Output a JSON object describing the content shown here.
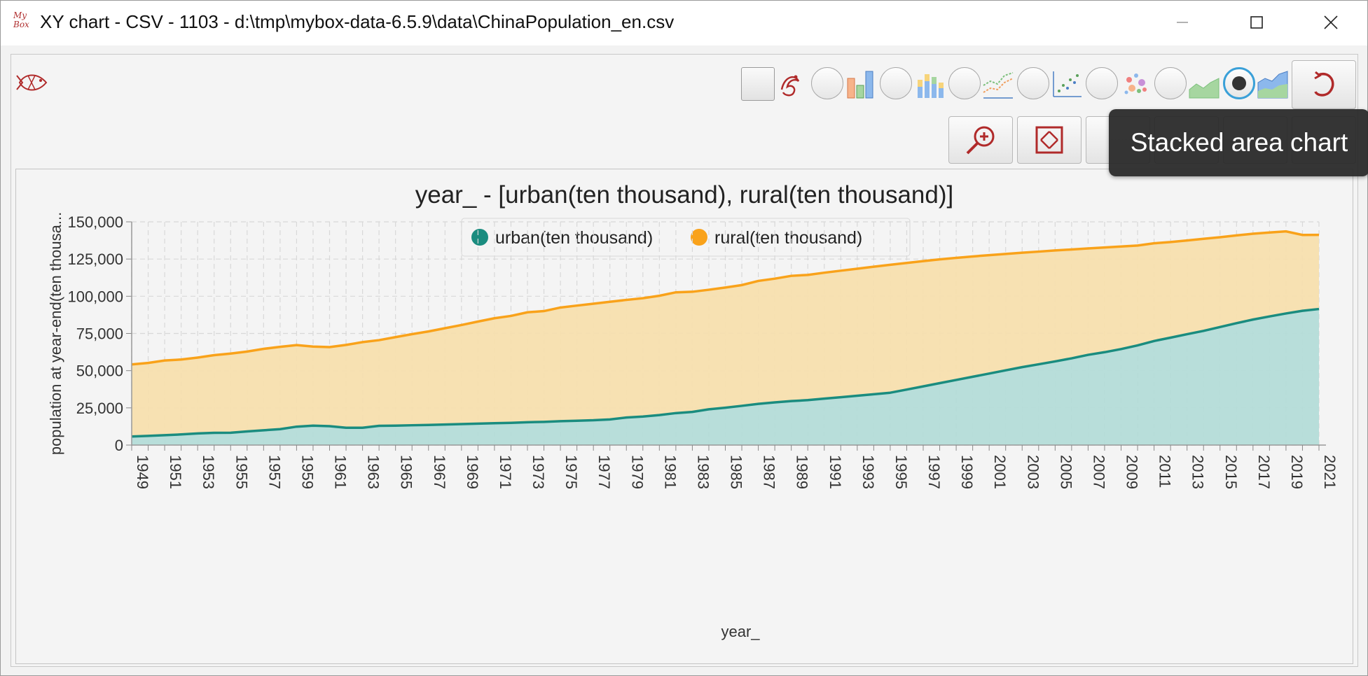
{
  "window": {
    "app_icon_text": "My Box",
    "title": "XY chart - CSV - 1103 - d:\\tmp\\mybox-data-6.5.9\\data\\ChinaPopulation_en.csv"
  },
  "toolbar": {
    "chart_types": [
      "bar",
      "stacked-bar",
      "line",
      "scatter",
      "bubble",
      "area",
      "stacked-area"
    ],
    "selected_chart_type": "stacked-area",
    "second_row": [
      "zoom-in",
      "fit",
      "settings",
      "edit",
      "copy",
      "menu"
    ]
  },
  "tooltip": {
    "text": "Stacked area chart"
  },
  "colors": {
    "urban": "#1a8c7f",
    "urban_fill": "#b4dcd8",
    "rural": "#f9a21a",
    "rural_fill": "#f7dfae"
  },
  "chart_data": {
    "type": "area",
    "stacked": true,
    "title": "year_ - [urban(ten thousand), rural(ten thousand)]",
    "xlabel": "year_",
    "ylabel": "population at year-end(ten thousa...",
    "legend_position": "top",
    "grid": true,
    "ylim": [
      0,
      150000
    ],
    "y_ticks": [
      "0",
      "25,000",
      "50,000",
      "75,000",
      "100,000",
      "125,000",
      "150,000"
    ],
    "x_tick_labels": [
      "1949",
      "1951",
      "1953",
      "1955",
      "1957",
      "1959",
      "1961",
      "1963",
      "1965",
      "1967",
      "1969",
      "1971",
      "1973",
      "1975",
      "1977",
      "1979",
      "1981",
      "1983",
      "1985",
      "1987",
      "1989",
      "1991",
      "1993",
      "1995",
      "1997",
      "1999",
      "2001",
      "2003",
      "2005",
      "2007",
      "2009",
      "2011",
      "2013",
      "2015",
      "2017",
      "2019",
      "2021"
    ],
    "x": [
      1949,
      1950,
      1951,
      1952,
      1953,
      1954,
      1955,
      1956,
      1957,
      1958,
      1959,
      1960,
      1961,
      1962,
      1963,
      1964,
      1965,
      1966,
      1967,
      1968,
      1969,
      1970,
      1971,
      1972,
      1973,
      1974,
      1975,
      1976,
      1977,
      1978,
      1979,
      1980,
      1981,
      1982,
      1983,
      1984,
      1985,
      1986,
      1987,
      1988,
      1989,
      1990,
      1991,
      1992,
      1993,
      1994,
      1995,
      1996,
      1997,
      1998,
      1999,
      2000,
      2001,
      2002,
      2003,
      2004,
      2005,
      2006,
      2007,
      2008,
      2009,
      2010,
      2011,
      2012,
      2013,
      2014,
      2015,
      2016,
      2017,
      2018,
      2019,
      2020,
      2021
    ],
    "series": [
      {
        "name": "urban(ten thousand)",
        "values": [
          5765,
          6169,
          6632,
          7163,
          7826,
          8249,
          8285,
          9185,
          9949,
          10721,
          12371,
          13073,
          12707,
          11659,
          11646,
          12950,
          13045,
          13313,
          13548,
          13838,
          14117,
          14424,
          14711,
          14935,
          15345,
          15595,
          16030,
          16341,
          16669,
          17245,
          18495,
          19140,
          20171,
          21480,
          22274,
          24017,
          25094,
          26366,
          27674,
          28661,
          29540,
          30195,
          31203,
          32175,
          33173,
          34169,
          35174,
          37304,
          39449,
          41608,
          43748,
          45906,
          48064,
          50212,
          52376,
          54283,
          56212,
          58288,
          60633,
          62403,
          64512,
          66978,
          69927,
          72175,
          74502,
          76738,
          79302,
          81924,
          84343,
          86433,
          88426,
          90220,
          91425
        ]
      },
      {
        "name": "rural(ten thousand)",
        "values": [
          48402,
          49027,
          50183,
          50319,
          50970,
          52151,
          53180,
          53643,
          54704,
          55273,
          54836,
          53134,
          53152,
          55636,
          57526,
          57549,
          59493,
          61229,
          62820,
          64696,
          66554,
          68568,
          70518,
          71854,
          73866,
          74432,
          76390,
          77376,
          78305,
          79014,
          79047,
          79565,
          80166,
          81174,
          80734,
          80340,
          80757,
          81141,
          82626,
          83164,
          84164,
          84138,
          84620,
          84996,
          85344,
          85681,
          85947,
          85085,
          84177,
          83153,
          82038,
          80837,
          79563,
          78241,
          76851,
          75705,
          74544,
          73160,
          71496,
          70399,
          68938,
          67113,
          65656,
          64222,
          62961,
          61866,
          60346,
          58973,
          57661,
          56401,
          55162,
          50992,
          49835
        ]
      }
    ]
  }
}
